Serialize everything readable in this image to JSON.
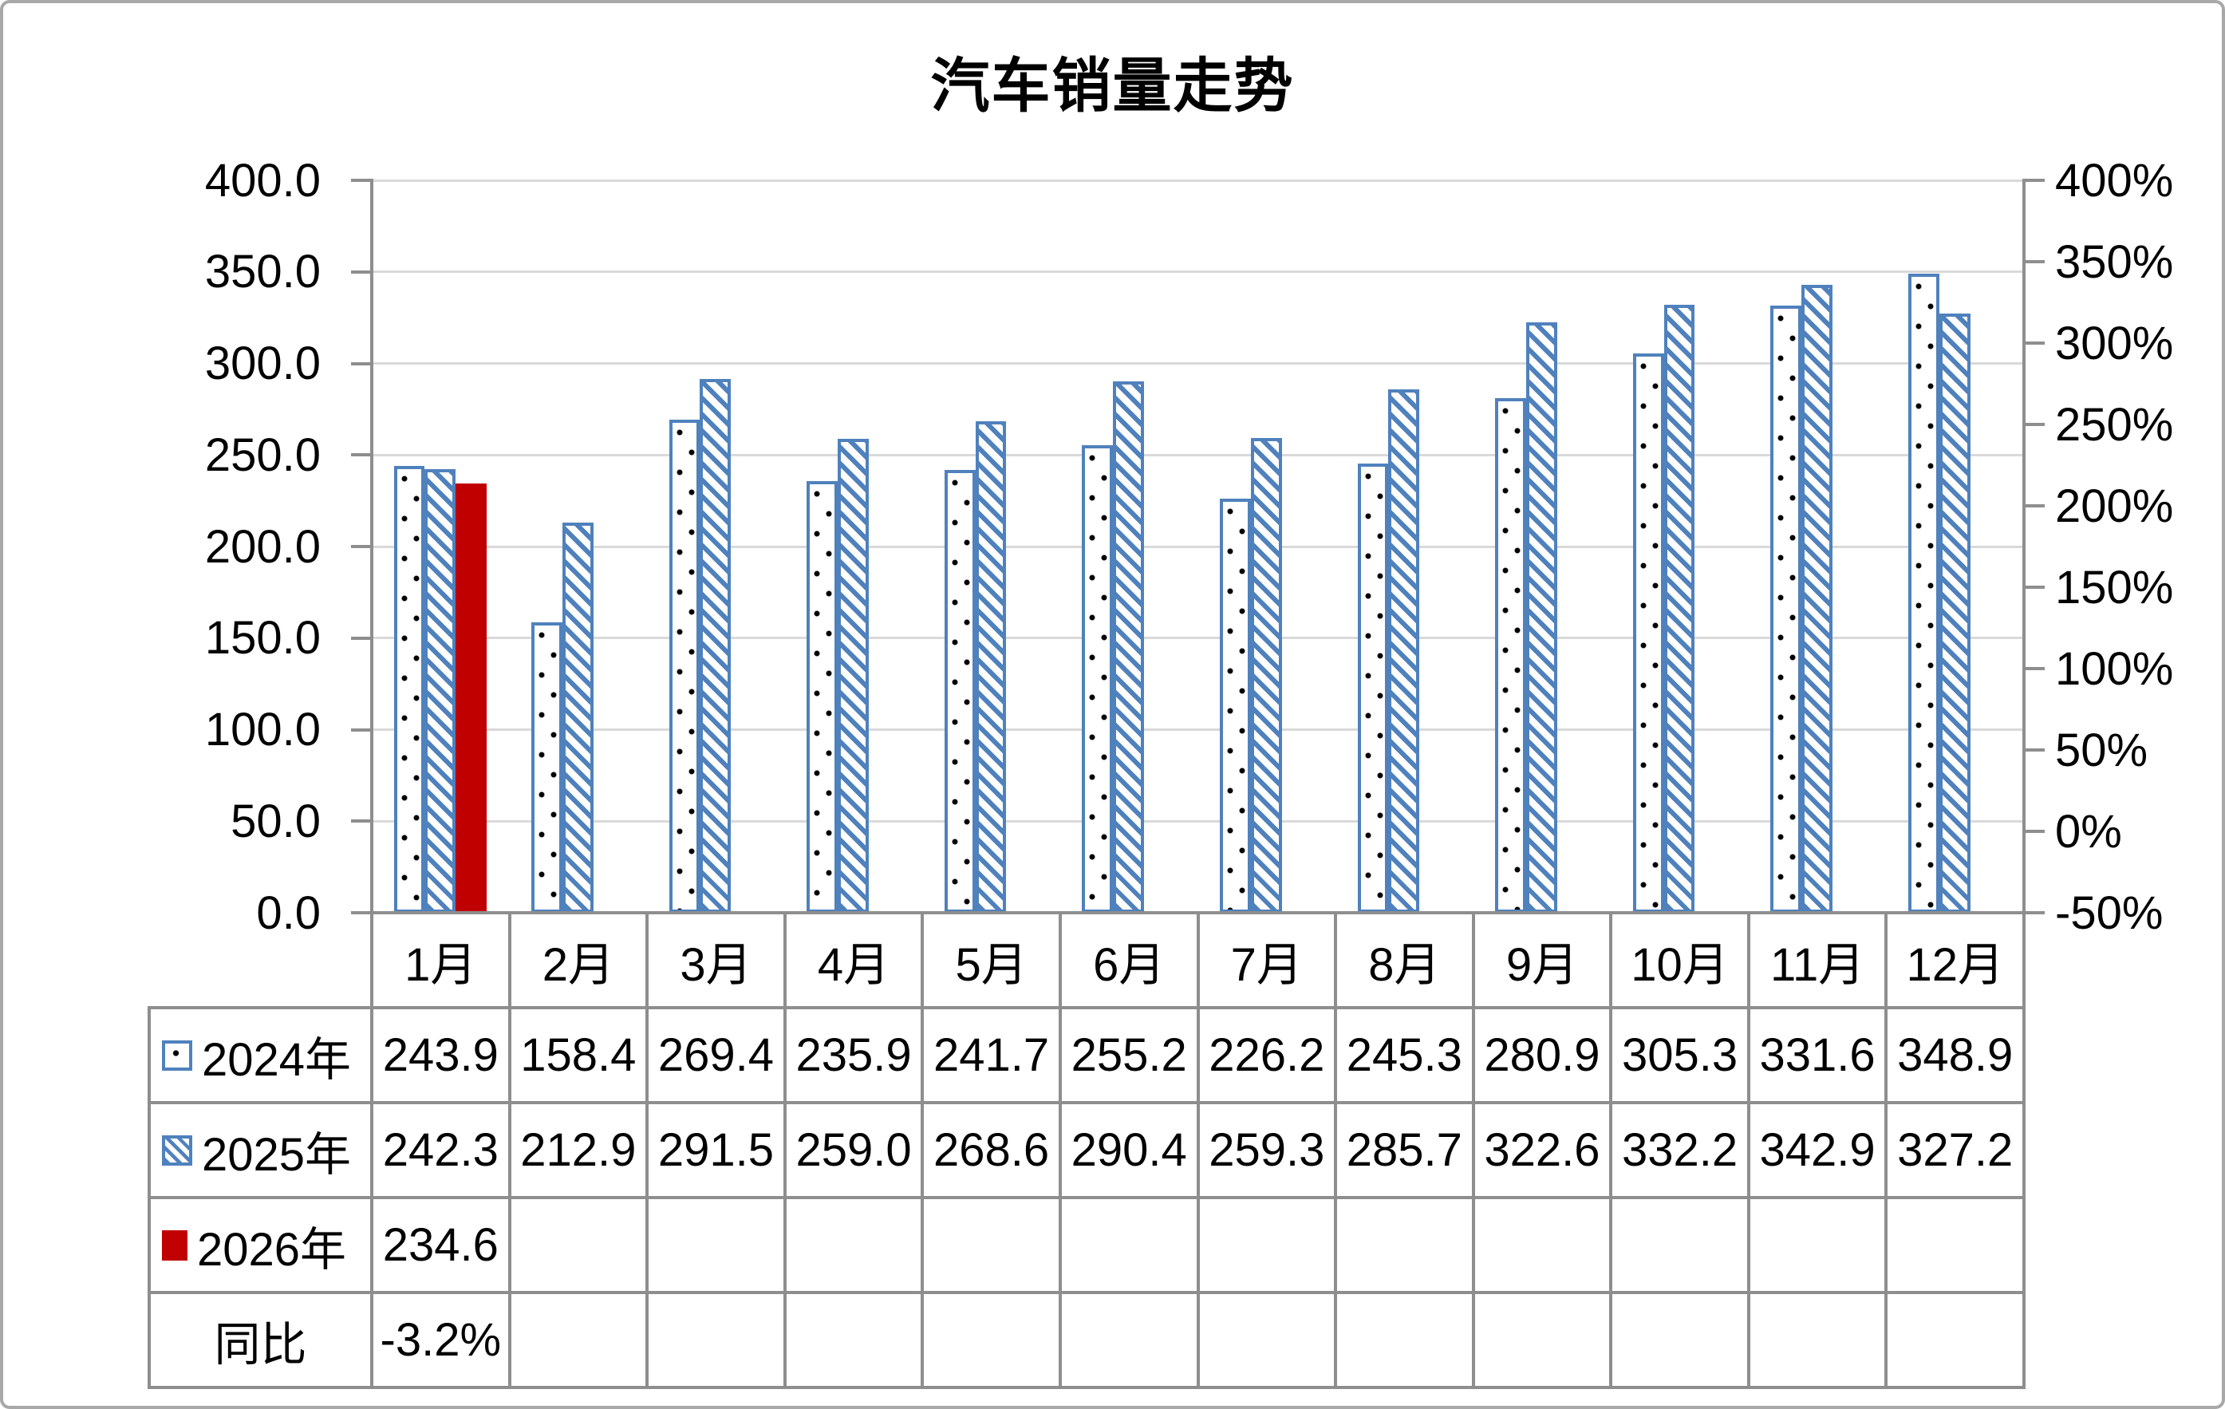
{
  "title": "汽车销量走势",
  "chart_data": {
    "type": "bar",
    "title": "汽车销量走势",
    "categories": [
      "1月",
      "2月",
      "3月",
      "4月",
      "5月",
      "6月",
      "7月",
      "8月",
      "9月",
      "10月",
      "11月",
      "12月"
    ],
    "series": [
      {
        "name": "2024年",
        "style": "dots",
        "color": "#4F81BD",
        "values": [
          243.9,
          158.4,
          269.4,
          235.9,
          241.7,
          255.2,
          226.2,
          245.3,
          280.9,
          305.3,
          331.6,
          348.9
        ]
      },
      {
        "name": "2025年",
        "style": "hatch",
        "color": "#4F81BD",
        "values": [
          242.3,
          212.9,
          291.5,
          259.0,
          268.6,
          290.4,
          259.3,
          285.7,
          322.6,
          332.2,
          342.9,
          327.2
        ]
      },
      {
        "name": "2026年",
        "style": "solid",
        "color": "#C00000",
        "values": [
          234.6,
          null,
          null,
          null,
          null,
          null,
          null,
          null,
          null,
          null,
          null,
          null
        ]
      }
    ],
    "left_axis": {
      "min": 0,
      "max": 400,
      "step": 50,
      "tick_labels": [
        "400.0",
        "350.0",
        "300.0",
        "250.0",
        "200.0",
        "150.0",
        "100.0",
        "50.0",
        "0.0"
      ]
    },
    "right_axis": {
      "min": -50,
      "max": 400,
      "step": 50,
      "tick_labels": [
        "400%",
        "350%",
        "300%",
        "250%",
        "200%",
        "150%",
        "100%",
        "50%",
        "0%",
        "-50%"
      ]
    },
    "grid": true,
    "legend_position": "table-left"
  },
  "table": {
    "header": [
      "1月",
      "2月",
      "3月",
      "4月",
      "5月",
      "6月",
      "7月",
      "8月",
      "9月",
      "10月",
      "11月",
      "12月"
    ],
    "rows": [
      {
        "label": "2024年",
        "swatch": "dots",
        "cells": [
          "243.9",
          "158.4",
          "269.4",
          "235.9",
          "241.7",
          "255.2",
          "226.2",
          "245.3",
          "280.9",
          "305.3",
          "331.6",
          "348.9"
        ]
      },
      {
        "label": "2025年",
        "swatch": "hatch",
        "cells": [
          "242.3",
          "212.9",
          "291.5",
          "259.0",
          "268.6",
          "290.4",
          "259.3",
          "285.7",
          "322.6",
          "332.2",
          "342.9",
          "327.2"
        ]
      },
      {
        "label": "2026年",
        "swatch": "solid",
        "cells": [
          "234.6",
          "",
          "",
          "",
          "",
          "",
          "",
          "",
          "",
          "",
          "",
          ""
        ]
      },
      {
        "label": "同比",
        "swatch": "none",
        "cells": [
          "-3.2%",
          "",
          "",
          "",
          "",
          "",
          "",
          "",
          "",
          "",
          "",
          ""
        ]
      }
    ]
  },
  "colors": {
    "bar_blue": "#4F81BD",
    "bar_red": "#C00000",
    "gridline": "#D9D9D9",
    "axis_line": "#8E8E8E",
    "text": "#000000"
  }
}
